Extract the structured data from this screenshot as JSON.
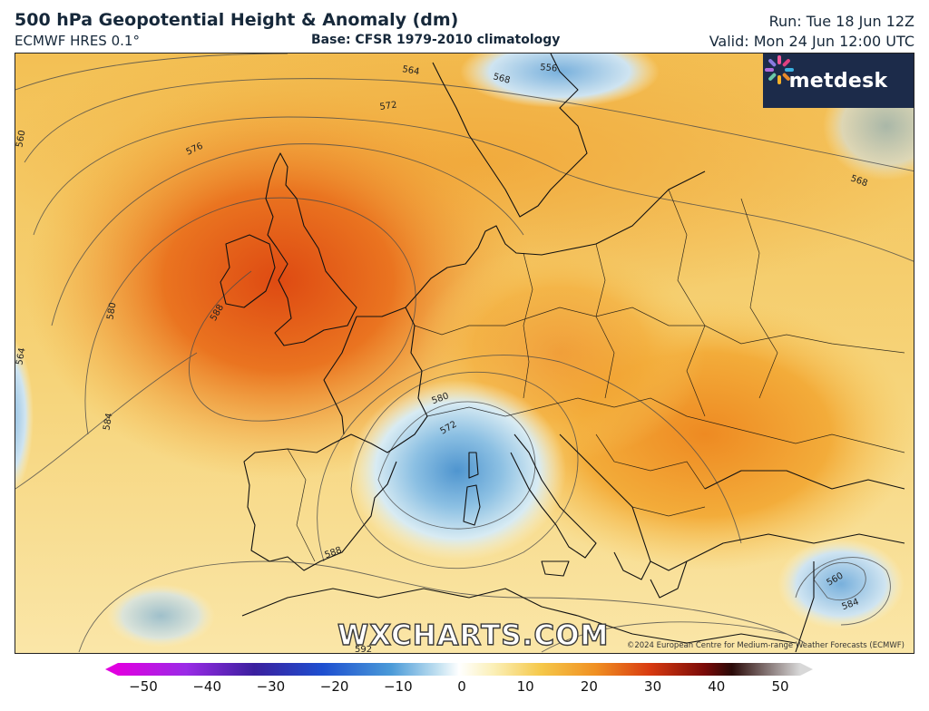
{
  "header": {
    "title": "500 hPa Geopotential Height & Anomaly (dm)",
    "model": "ECMWF HRES 0.1°",
    "base": "Base: CFSR 1979-2010 climatology",
    "run": "Run: Tue 18 Jun 12Z",
    "valid": "Valid: Mon 24 Jun 12:00 UTC"
  },
  "brand": {
    "name": "metdesk",
    "icon": "metdesk-pinwheel-logo"
  },
  "watermark": "WXCHARTS.COM",
  "copyright": "©2024 European Centre for Medium-range Weather Forecasts (ECMWF)",
  "contour_labels": [
    "556",
    "560",
    "564",
    "568",
    "572",
    "576",
    "580",
    "584",
    "588",
    "560",
    "564",
    "568",
    "572",
    "580",
    "584",
    "588",
    "592"
  ],
  "colorbar": {
    "ticks": [
      "−50",
      "−40",
      "−30",
      "−20",
      "−10",
      "0",
      "10",
      "20",
      "30",
      "40",
      "50"
    ],
    "range": [
      -50,
      50
    ],
    "colors": [
      "#d400d4",
      "#8a2be2",
      "#3b1f9e",
      "#1e4fd0",
      "#3d8fd8",
      "#b9dcef",
      "#ffffff",
      "#fbf2c0",
      "#f5c84a",
      "#f08a1c",
      "#d83a10",
      "#8a0a08",
      "#2a0a08",
      "#d0d0d0"
    ]
  },
  "colors": {
    "warm": "#f2a23a",
    "hot": "#e25a1a",
    "cold": "#7fb6df",
    "land_line": "#111111"
  }
}
